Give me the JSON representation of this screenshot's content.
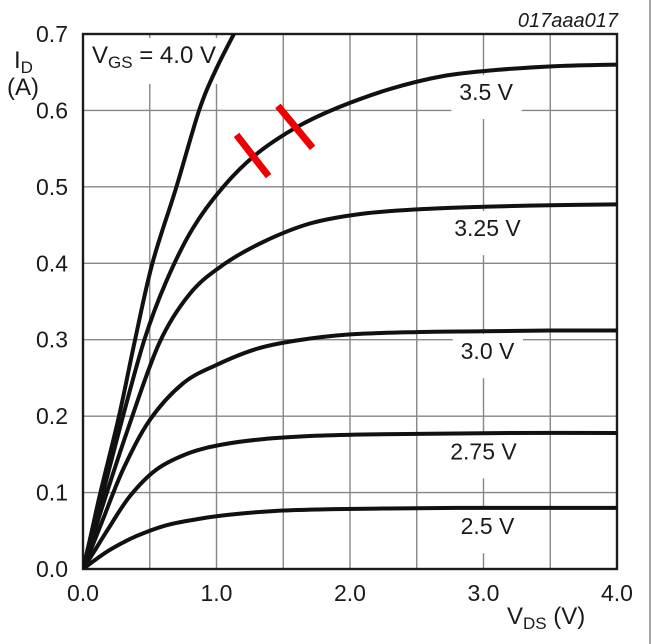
{
  "figure_id": "017aaa017",
  "colors": {
    "background": "#ffffff",
    "curve": "#111111",
    "grid": "#868686",
    "border": "#1c1c1c",
    "text": "#1a1a1a",
    "mark_red": "#ee0000",
    "page_edge": "#a6a6a6"
  },
  "chart_data": {
    "type": "line",
    "title": "",
    "xlabel": {
      "main": "V",
      "sub": "DS",
      "rest": " (V)"
    },
    "ylabel": {
      "main": "I",
      "sub": "D",
      "unit": "(A)"
    },
    "xlim": [
      0,
      4
    ],
    "ylim": [
      0,
      0.7
    ],
    "grid": {
      "on": true,
      "x_step": 0.5,
      "y_step": 0.1
    },
    "x_ticks": [
      {
        "value": 0,
        "label": "0.0"
      },
      {
        "value": 1,
        "label": "1.0"
      },
      {
        "value": 2,
        "label": "2.0"
      },
      {
        "value": 3,
        "label": "3.0"
      },
      {
        "value": 4,
        "label": "4.0"
      }
    ],
    "y_ticks": [
      {
        "value": 0.0,
        "label": "0.0"
      },
      {
        "value": 0.1,
        "label": "0.1"
      },
      {
        "value": 0.2,
        "label": "0.2"
      },
      {
        "value": 0.3,
        "label": "0.3"
      },
      {
        "value": 0.4,
        "label": "0.4"
      },
      {
        "value": 0.5,
        "label": "0.5"
      },
      {
        "value": 0.6,
        "label": "0.6"
      },
      {
        "value": 0.7,
        "label": "0.7"
      }
    ],
    "annotation_box": {
      "main": "V",
      "sub": "GS",
      "rest": " = 4.0 V",
      "x": 0.07,
      "y": 0.665
    },
    "series": [
      {
        "name": "VGS = 4.0 V",
        "label": "",
        "label_pos": null,
        "points": [
          [
            0,
            0
          ],
          [
            0.06,
            0.045
          ],
          [
            0.13,
            0.1
          ],
          [
            0.27,
            0.2
          ],
          [
            0.39,
            0.3
          ],
          [
            0.52,
            0.4
          ],
          [
            0.7,
            0.5
          ],
          [
            0.87,
            0.6
          ],
          [
            1.0,
            0.655
          ],
          [
            1.16,
            0.71
          ]
        ]
      },
      {
        "name": "VGS = 3.5 V",
        "label": "3.5 V",
        "label_pos": [
          3.02,
          0.624
        ],
        "points": [
          [
            0,
            0
          ],
          [
            0.07,
            0.045
          ],
          [
            0.15,
            0.1
          ],
          [
            0.3,
            0.2
          ],
          [
            0.46,
            0.3
          ],
          [
            0.62,
            0.375
          ],
          [
            0.82,
            0.445
          ],
          [
            1.05,
            0.5
          ],
          [
            1.3,
            0.543
          ],
          [
            1.6,
            0.578
          ],
          [
            1.9,
            0.603
          ],
          [
            2.3,
            0.628
          ],
          [
            2.7,
            0.645
          ],
          [
            3.1,
            0.653
          ],
          [
            3.55,
            0.658
          ],
          [
            4.0,
            0.66
          ]
        ]
      },
      {
        "name": "VGS = 3.25 V",
        "label": "3.25 V",
        "label_pos": [
          3.03,
          0.446
        ],
        "points": [
          [
            0,
            0
          ],
          [
            0.07,
            0.04
          ],
          [
            0.16,
            0.09
          ],
          [
            0.34,
            0.185
          ],
          [
            0.57,
            0.295
          ],
          [
            0.8,
            0.36
          ],
          [
            1.05,
            0.398
          ],
          [
            1.35,
            0.428
          ],
          [
            1.7,
            0.452
          ],
          [
            2.1,
            0.465
          ],
          [
            2.55,
            0.471
          ],
          [
            3.0,
            0.474
          ],
          [
            3.5,
            0.476
          ],
          [
            4.0,
            0.477
          ]
        ]
      },
      {
        "name": "VGS = 3.0 V",
        "label": "3.0 V",
        "label_pos": [
          3.03,
          0.285
        ],
        "points": [
          [
            0,
            0
          ],
          [
            0.07,
            0.03
          ],
          [
            0.15,
            0.065
          ],
          [
            0.3,
            0.13
          ],
          [
            0.5,
            0.195
          ],
          [
            0.75,
            0.243
          ],
          [
            1.0,
            0.267
          ],
          [
            1.3,
            0.288
          ],
          [
            1.6,
            0.299
          ],
          [
            2.0,
            0.307
          ],
          [
            2.5,
            0.31
          ],
          [
            3.0,
            0.311
          ],
          [
            3.5,
            0.312
          ],
          [
            4.0,
            0.312
          ]
        ]
      },
      {
        "name": "VGS = 2.75 V",
        "label": "2.75 V",
        "label_pos": [
          3.0,
          0.154
        ],
        "points": [
          [
            0,
            0
          ],
          [
            0.08,
            0.022
          ],
          [
            0.18,
            0.05
          ],
          [
            0.35,
            0.095
          ],
          [
            0.55,
            0.13
          ],
          [
            0.8,
            0.152
          ],
          [
            1.05,
            0.163
          ],
          [
            1.35,
            0.17
          ],
          [
            1.7,
            0.174
          ],
          [
            2.1,
            0.176
          ],
          [
            2.6,
            0.177
          ],
          [
            3.2,
            0.178
          ],
          [
            4.0,
            0.178
          ]
        ]
      },
      {
        "name": "VGS = 2.5 V",
        "label": "2.5 V",
        "label_pos": [
          3.03,
          0.056
        ],
        "points": [
          [
            0,
            0
          ],
          [
            0.1,
            0.013
          ],
          [
            0.22,
            0.027
          ],
          [
            0.4,
            0.043
          ],
          [
            0.62,
            0.057
          ],
          [
            0.88,
            0.066
          ],
          [
            1.15,
            0.072
          ],
          [
            1.45,
            0.076
          ],
          [
            1.8,
            0.078
          ],
          [
            2.2,
            0.079
          ],
          [
            2.8,
            0.08
          ],
          [
            4.0,
            0.08
          ]
        ]
      }
    ],
    "marks": [
      {
        "type": "slash",
        "x1": 1.15,
        "y1": 0.568,
        "x2": 1.39,
        "y2": 0.514
      },
      {
        "type": "slash",
        "x1": 1.46,
        "y1": 0.606,
        "x2": 1.72,
        "y2": 0.551
      }
    ]
  }
}
